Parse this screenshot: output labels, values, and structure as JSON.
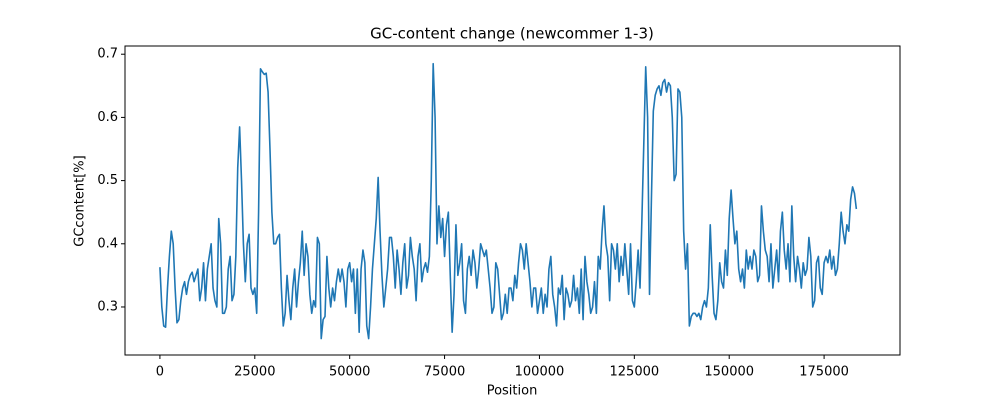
{
  "chart_data": {
    "type": "line",
    "title": "GC-content change (newcommer 1-3)",
    "xlabel": "Position",
    "ylabel": "GCcontent[%]",
    "color": "#1f77b4",
    "grid": false,
    "xlim": [
      -9200,
      195000
    ],
    "ylim": [
      0.224,
      0.713
    ],
    "xticks": [
      0,
      25000,
      50000,
      75000,
      100000,
      125000,
      150000,
      175000
    ],
    "yticks": [
      0.3,
      0.4,
      0.5,
      0.6,
      0.7
    ],
    "x": [
      0,
      500,
      1000,
      1500,
      2000,
      2500,
      3000,
      3500,
      4000,
      4500,
      5000,
      5500,
      6000,
      6500,
      7000,
      7500,
      8000,
      8500,
      9000,
      9500,
      10000,
      10500,
      11000,
      11500,
      12000,
      12500,
      13000,
      13500,
      14000,
      14500,
      15000,
      15500,
      16000,
      16500,
      17000,
      17500,
      18000,
      18500,
      19000,
      19500,
      20000,
      20500,
      21000,
      21500,
      22000,
      22500,
      23000,
      23500,
      24000,
      24500,
      25000,
      25500,
      26000,
      26500,
      27000,
      27500,
      28000,
      28500,
      29000,
      29500,
      30000,
      30500,
      31000,
      31500,
      32000,
      32500,
      33000,
      33500,
      34000,
      34500,
      35000,
      35500,
      36000,
      36500,
      37000,
      37500,
      38000,
      38500,
      39000,
      39500,
      40000,
      40500,
      41000,
      41500,
      42000,
      42500,
      43000,
      43500,
      44000,
      44500,
      45000,
      45500,
      46000,
      46500,
      47000,
      47500,
      48000,
      48500,
      49000,
      49500,
      50000,
      50500,
      51000,
      51500,
      52000,
      52500,
      53000,
      53500,
      54000,
      54500,
      55000,
      55500,
      56000,
      56500,
      57000,
      57500,
      58000,
      58500,
      59000,
      59500,
      60000,
      60500,
      61000,
      61500,
      62000,
      62500,
      63000,
      63500,
      64000,
      64500,
      65000,
      65500,
      66000,
      66500,
      67000,
      67500,
      68000,
      68500,
      69000,
      69500,
      70000,
      70500,
      71000,
      71500,
      72000,
      72500,
      73000,
      73500,
      74000,
      74500,
      75000,
      75500,
      76000,
      76500,
      77000,
      77500,
      78000,
      78500,
      79000,
      79500,
      80000,
      80500,
      81000,
      81500,
      82000,
      82500,
      83000,
      83500,
      84000,
      84500,
      85000,
      85500,
      86000,
      86500,
      87000,
      87500,
      88000,
      88500,
      89000,
      89500,
      90000,
      90500,
      91000,
      91500,
      92000,
      92500,
      93000,
      93500,
      94000,
      94500,
      95000,
      95500,
      96000,
      96500,
      97000,
      97500,
      98000,
      98500,
      99000,
      99500,
      100000,
      100500,
      101000,
      101500,
      102000,
      102500,
      103000,
      103500,
      104000,
      104500,
      105000,
      105500,
      106000,
      106500,
      107000,
      107500,
      108000,
      108500,
      109000,
      109500,
      110000,
      110500,
      111000,
      111500,
      112000,
      112500,
      113000,
      113500,
      114000,
      114500,
      115000,
      115500,
      116000,
      116500,
      117000,
      117500,
      118000,
      118500,
      119000,
      119500,
      120000,
      120500,
      121000,
      121500,
      122000,
      122500,
      123000,
      123500,
      124000,
      124500,
      125000,
      125500,
      126000,
      126500,
      127000,
      127500,
      128000,
      128500,
      129000,
      129500,
      130000,
      130500,
      131000,
      131500,
      132000,
      132500,
      133000,
      133500,
      134000,
      134500,
      135000,
      135500,
      136000,
      136500,
      137000,
      137500,
      138000,
      138500,
      139000,
      139500,
      140000,
      140500,
      141000,
      141500,
      142000,
      142500,
      143000,
      143500,
      144000,
      144500,
      145000,
      145500,
      146000,
      146500,
      147000,
      147500,
      148000,
      148500,
      149000,
      149500,
      150000,
      150500,
      151000,
      151500,
      152000,
      152500,
      153000,
      153500,
      154000,
      154500,
      155000,
      155500,
      156000,
      156500,
      157000,
      157500,
      158000,
      158500,
      159000,
      159500,
      160000,
      160500,
      161000,
      161500,
      162000,
      162500,
      163000,
      163500,
      164000,
      164500,
      165000,
      165500,
      166000,
      166500,
      167000,
      167500,
      168000,
      168500,
      169000,
      169500,
      170000,
      170500,
      171000,
      171500,
      172000,
      172500,
      173000,
      173500,
      174000,
      174500,
      175000,
      175500,
      176000,
      176500,
      177000,
      177500,
      178000,
      178500,
      179000,
      179500,
      180000,
      180500,
      181000,
      181500,
      182000,
      182500,
      183000,
      183500
    ],
    "values": [
      0.363,
      0.3,
      0.27,
      0.268,
      0.33,
      0.38,
      0.42,
      0.4,
      0.33,
      0.275,
      0.28,
      0.31,
      0.33,
      0.34,
      0.32,
      0.34,
      0.35,
      0.355,
      0.34,
      0.35,
      0.36,
      0.31,
      0.33,
      0.37,
      0.31,
      0.36,
      0.38,
      0.4,
      0.33,
      0.31,
      0.3,
      0.44,
      0.4,
      0.29,
      0.29,
      0.3,
      0.36,
      0.38,
      0.31,
      0.32,
      0.38,
      0.52,
      0.585,
      0.5,
      0.4,
      0.34,
      0.4,
      0.415,
      0.33,
      0.32,
      0.33,
      0.29,
      0.45,
      0.677,
      0.672,
      0.668,
      0.67,
      0.64,
      0.55,
      0.45,
      0.4,
      0.4,
      0.41,
      0.415,
      0.33,
      0.27,
      0.29,
      0.35,
      0.31,
      0.28,
      0.33,
      0.36,
      0.3,
      0.34,
      0.37,
      0.42,
      0.35,
      0.4,
      0.38,
      0.32,
      0.29,
      0.31,
      0.3,
      0.41,
      0.4,
      0.25,
      0.28,
      0.285,
      0.38,
      0.33,
      0.3,
      0.33,
      0.31,
      0.34,
      0.36,
      0.34,
      0.36,
      0.34,
      0.3,
      0.36,
      0.37,
      0.34,
      0.36,
      0.29,
      0.36,
      0.26,
      0.36,
      0.39,
      0.37,
      0.27,
      0.25,
      0.3,
      0.36,
      0.4,
      0.44,
      0.505,
      0.42,
      0.35,
      0.3,
      0.33,
      0.36,
      0.41,
      0.41,
      0.38,
      0.33,
      0.39,
      0.36,
      0.32,
      0.37,
      0.4,
      0.33,
      0.35,
      0.41,
      0.38,
      0.36,
      0.31,
      0.38,
      0.4,
      0.34,
      0.36,
      0.37,
      0.355,
      0.38,
      0.5,
      0.685,
      0.6,
      0.4,
      0.46,
      0.41,
      0.44,
      0.38,
      0.43,
      0.45,
      0.35,
      0.26,
      0.32,
      0.43,
      0.35,
      0.37,
      0.4,
      0.31,
      0.29,
      0.36,
      0.38,
      0.35,
      0.39,
      0.37,
      0.33,
      0.36,
      0.4,
      0.39,
      0.38,
      0.39,
      0.36,
      0.33,
      0.29,
      0.3,
      0.37,
      0.36,
      0.32,
      0.28,
      0.29,
      0.32,
      0.29,
      0.33,
      0.33,
      0.31,
      0.35,
      0.33,
      0.37,
      0.4,
      0.39,
      0.36,
      0.4,
      0.37,
      0.34,
      0.3,
      0.33,
      0.33,
      0.29,
      0.31,
      0.33,
      0.29,
      0.32,
      0.3,
      0.36,
      0.38,
      0.32,
      0.3,
      0.27,
      0.33,
      0.32,
      0.35,
      0.28,
      0.33,
      0.32,
      0.3,
      0.31,
      0.35,
      0.31,
      0.33,
      0.29,
      0.36,
      0.28,
      0.38,
      0.34,
      0.32,
      0.29,
      0.3,
      0.34,
      0.29,
      0.38,
      0.36,
      0.42,
      0.46,
      0.4,
      0.38,
      0.31,
      0.4,
      0.39,
      0.36,
      0.4,
      0.34,
      0.38,
      0.35,
      0.4,
      0.36,
      0.32,
      0.4,
      0.31,
      0.3,
      0.34,
      0.39,
      0.33,
      0.44,
      0.56,
      0.68,
      0.6,
      0.32,
      0.47,
      0.61,
      0.635,
      0.645,
      0.65,
      0.635,
      0.655,
      0.66,
      0.64,
      0.655,
      0.65,
      0.6,
      0.5,
      0.51,
      0.645,
      0.64,
      0.6,
      0.42,
      0.36,
      0.4,
      0.27,
      0.285,
      0.29,
      0.29,
      0.285,
      0.29,
      0.28,
      0.3,
      0.31,
      0.3,
      0.33,
      0.43,
      0.35,
      0.29,
      0.28,
      0.31,
      0.37,
      0.34,
      0.33,
      0.39,
      0.35,
      0.44,
      0.485,
      0.44,
      0.4,
      0.42,
      0.36,
      0.34,
      0.36,
      0.33,
      0.39,
      0.36,
      0.38,
      0.36,
      0.39,
      0.38,
      0.34,
      0.35,
      0.46,
      0.42,
      0.39,
      0.38,
      0.34,
      0.4,
      0.33,
      0.36,
      0.39,
      0.34,
      0.42,
      0.45,
      0.39,
      0.36,
      0.4,
      0.34,
      0.46,
      0.38,
      0.34,
      0.38,
      0.36,
      0.33,
      0.37,
      0.35,
      0.36,
      0.41,
      0.38,
      0.3,
      0.31,
      0.37,
      0.38,
      0.33,
      0.32,
      0.37,
      0.38,
      0.37,
      0.39,
      0.36,
      0.38,
      0.35,
      0.36,
      0.4,
      0.45,
      0.42,
      0.4,
      0.43,
      0.42,
      0.47,
      0.49,
      0.48,
      0.455
    ]
  }
}
